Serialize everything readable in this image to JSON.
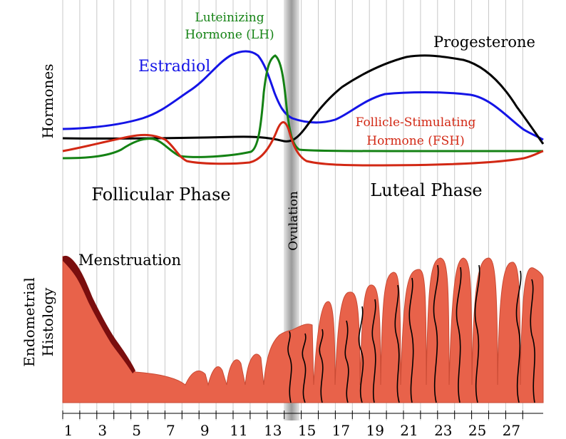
{
  "labels": {
    "lh_line1": "Luteinizing",
    "lh_line2": "Hormone (LH)",
    "progesterone": "Progesterone",
    "estradiol": "Estradiol",
    "fsh_line1": "Follicle-Stimulating",
    "fsh_line2": "Hormone (FSH)",
    "hormones_axis": "Hormones",
    "follicular_phase": "Follicular Phase",
    "luteal_phase": "Luteal Phase",
    "ovulation": "Ovulation",
    "menstruation": "Menstruation",
    "histology_line1": "Endometrial",
    "histology_line2": "Histology"
  },
  "day_ticks": [
    "1",
    "3",
    "5",
    "7",
    "9",
    "11",
    "13",
    "15",
    "17",
    "19",
    "21",
    "23",
    "25",
    "27"
  ],
  "colors": {
    "estradiol": "#1414e6",
    "lh": "#148214",
    "fsh": "#d22814",
    "progesterone": "#000000",
    "endometrium": "#e8624a",
    "menstrual_edge": "#7a0e0e",
    "ovulation_band": "#a8a8a8",
    "gridline": "#c8c8c8"
  }
}
